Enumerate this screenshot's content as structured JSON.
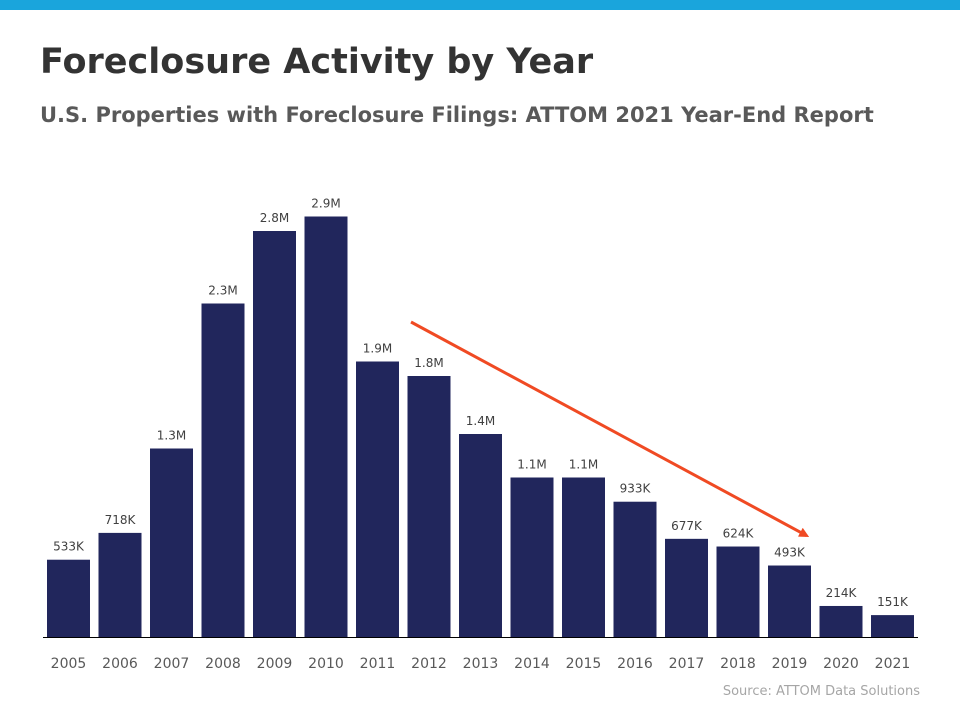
{
  "colors": {
    "top_band": "#1aa5dc",
    "bar": "#21265c",
    "arrow": "#f04a23",
    "axis": "#000000"
  },
  "source": "Source: ATTOM Data Solutions",
  "chart_data": {
    "type": "bar",
    "title": "Foreclosure Activity by Year",
    "subtitle": "U.S. Properties with Foreclosure Filings: ATTOM 2021 Year-End Report",
    "xlabel": "",
    "ylabel": "",
    "ylim": [
      0,
      3000000
    ],
    "grid": false,
    "categories": [
      "2005",
      "2006",
      "2007",
      "2008",
      "2009",
      "2010",
      "2011",
      "2012",
      "2013",
      "2014",
      "2015",
      "2016",
      "2017",
      "2018",
      "2019",
      "2020",
      "2021"
    ],
    "values": [
      533000,
      718000,
      1300000,
      2300000,
      2800000,
      2900000,
      1900000,
      1800000,
      1400000,
      1100000,
      1100000,
      933000,
      677000,
      624000,
      493000,
      214000,
      151000
    ],
    "labels": [
      "533K",
      "718K",
      "1.3M",
      "2.3M",
      "2.8M",
      "2.9M",
      "1.9M",
      "1.8M",
      "1.4M",
      "1.1M",
      "1.1M",
      "933K",
      "677K",
      "624K",
      "493K",
      "214K",
      "151K"
    ],
    "annotations": [
      {
        "type": "trend-arrow",
        "from_category": "2012",
        "to_category": "2019",
        "description": "downward trend"
      }
    ]
  }
}
